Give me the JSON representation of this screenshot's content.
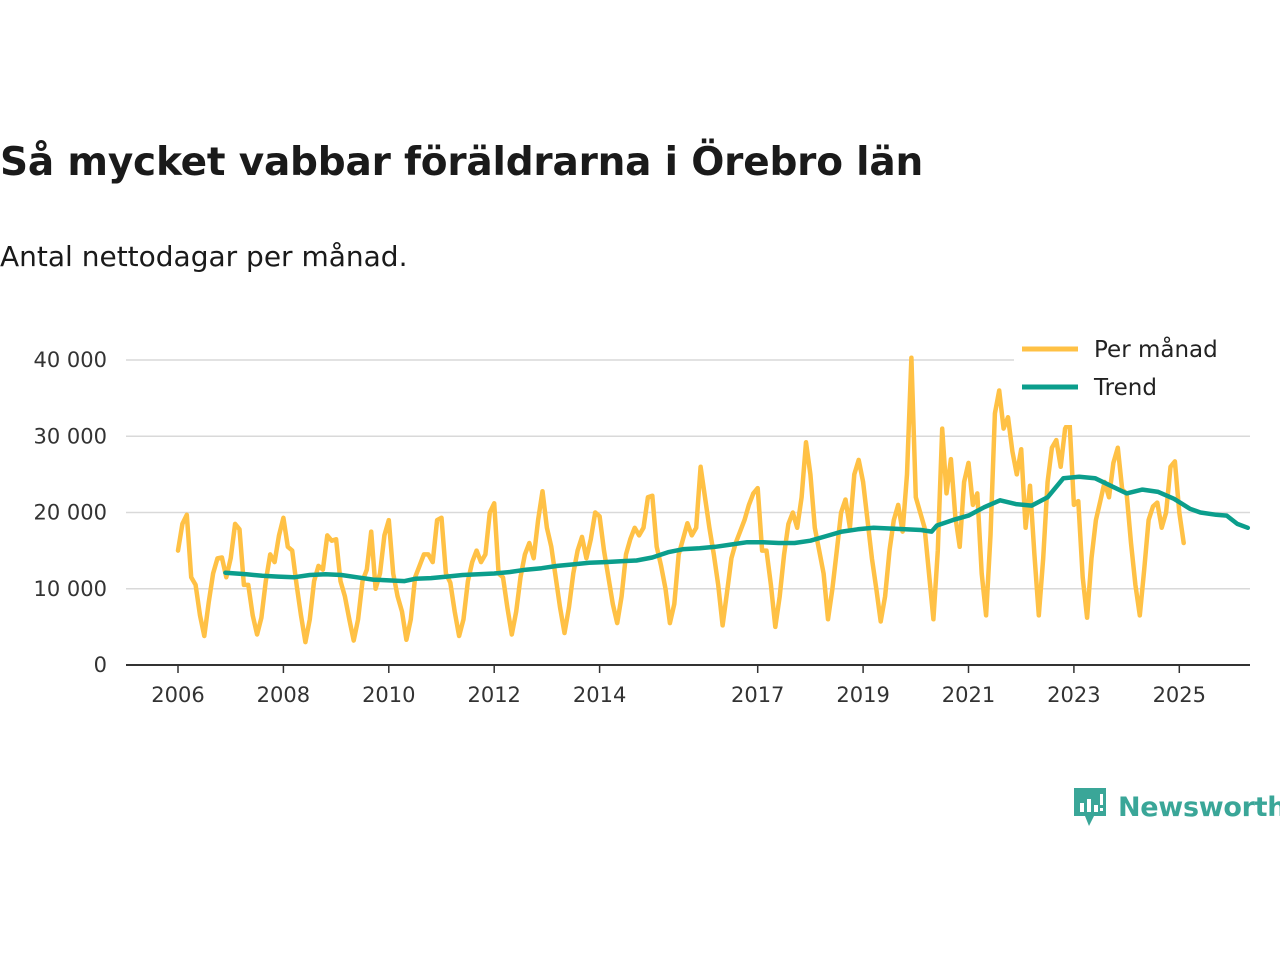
{
  "header": {
    "title": "Så mycket vabbar föräldrarna i Örebro län",
    "subtitle": "Antal nettodagar per månad."
  },
  "brand": {
    "name": "Newsworthy",
    "color": "#3aa698"
  },
  "chart_data": {
    "type": "line",
    "title": "Så mycket vabbar föräldrarna i Örebro län",
    "subtitle": "Antal nettodagar per månad.",
    "xlabel": "",
    "ylabel": "",
    "xlim": [
      2005.5,
      2026.3
    ],
    "ylim": [
      0,
      40000
    ],
    "y_ticks": [
      0,
      10000,
      20000,
      30000,
      40000
    ],
    "y_tick_labels": [
      "0",
      "10 000",
      "20 000",
      "30 000",
      "40 000"
    ],
    "x_ticks": [
      2006,
      2008,
      2010,
      2012,
      2014,
      2017,
      2019,
      2021,
      2023,
      2025
    ],
    "x_tick_labels": [
      "2006",
      "2008",
      "2010",
      "2012",
      "2014",
      "2017",
      "2019",
      "2021",
      "2023",
      "2025"
    ],
    "grid": true,
    "legend_position": "top-right",
    "series": [
      {
        "name": "Per månad",
        "color": "#ffc145",
        "start_year": 2006,
        "values": [
          15000,
          18500,
          19700,
          11500,
          10500,
          6500,
          3800,
          8200,
          12000,
          14000,
          14100,
          11500,
          14000,
          18500,
          17800,
          10500,
          10500,
          6500,
          4000,
          6200,
          11000,
          14500,
          13500,
          17000,
          19300,
          15500,
          15000,
          10500,
          6500,
          3000,
          6000,
          11000,
          13000,
          12500,
          17000,
          16300,
          16500,
          11000,
          9000,
          6000,
          3200,
          6000,
          11000,
          12500,
          17500,
          10000,
          12000,
          17000,
          19000,
          12000,
          9000,
          7000,
          3300,
          6000,
          11500,
          13000,
          14500,
          14500,
          13500,
          19000,
          19300,
          12000,
          10800,
          7000,
          3800,
          6000,
          11000,
          13500,
          15000,
          13500,
          14500,
          20000,
          21200,
          12000,
          11500,
          7500,
          4000,
          7000,
          11500,
          14500,
          16000,
          14000,
          19000,
          22800,
          18000,
          15500,
          11500,
          7500,
          4200,
          7500,
          12000,
          15000,
          16800,
          14000,
          16500,
          20000,
          19500,
          15000,
          11500,
          8000,
          5500,
          9000,
          14500,
          16500,
          18000,
          17000,
          18000,
          22000,
          22200,
          15500,
          13000,
          10000,
          5500,
          8000,
          14500,
          16500,
          18600,
          17000,
          18000,
          26000,
          22000,
          18000,
          14500,
          10500,
          5200,
          9500,
          14000,
          16000,
          17500,
          19000,
          21000,
          22500,
          23200,
          15000,
          15000,
          10500,
          5000,
          9000,
          14500,
          18500,
          20000,
          18000,
          22000,
          29200,
          25000,
          18000,
          15000,
          12000,
          6000,
          10000,
          15000,
          20000,
          21700,
          18000,
          25000,
          26900,
          24000,
          19000,
          14000,
          10000,
          5700,
          9000,
          15000,
          19000,
          21000,
          17500,
          25000,
          40300,
          22000,
          20000,
          18000,
          12000,
          6000,
          15000,
          31000,
          22500,
          27000,
          19500,
          15500,
          24000,
          26500,
          21000,
          22500,
          12000,
          6500,
          17000,
          33000,
          36000,
          31000,
          32500,
          28000,
          25000,
          28300,
          18000,
          23500,
          14500,
          6500,
          14000,
          24000,
          28500,
          29500,
          26000,
          31000,
          32000,
          21000,
          21500,
          11500,
          6200,
          14000,
          19000,
          21500,
          24000,
          22000,
          26500,
          28500,
          23000,
          22500,
          16000,
          10500,
          6500,
          12500,
          19000,
          20800,
          21300,
          18000,
          20000,
          26000,
          26700,
          20000,
          16000
        ]
      },
      {
        "name": "Trend",
        "color": "#0b9e8c",
        "start_year": 2006.9,
        "points": [
          [
            2006.9,
            12100
          ],
          [
            2007.3,
            11900
          ],
          [
            2007.6,
            11700
          ],
          [
            2007.9,
            11600
          ],
          [
            2008.2,
            11500
          ],
          [
            2008.5,
            11800
          ],
          [
            2008.8,
            11900
          ],
          [
            2009.1,
            11800
          ],
          [
            2009.4,
            11500
          ],
          [
            2009.7,
            11200
          ],
          [
            2010.0,
            11100
          ],
          [
            2010.3,
            11000
          ],
          [
            2010.5,
            11300
          ],
          [
            2010.8,
            11400
          ],
          [
            2011.1,
            11600
          ],
          [
            2011.4,
            11800
          ],
          [
            2011.7,
            11900
          ],
          [
            2012.0,
            12000
          ],
          [
            2012.3,
            12200
          ],
          [
            2012.6,
            12500
          ],
          [
            2012.9,
            12700
          ],
          [
            2013.2,
            13000
          ],
          [
            2013.5,
            13200
          ],
          [
            2013.8,
            13400
          ],
          [
            2014.1,
            13500
          ],
          [
            2014.4,
            13600
          ],
          [
            2014.7,
            13700
          ],
          [
            2015.0,
            14100
          ],
          [
            2015.3,
            14800
          ],
          [
            2015.6,
            15200
          ],
          [
            2015.9,
            15300
          ],
          [
            2016.2,
            15500
          ],
          [
            2016.5,
            15800
          ],
          [
            2016.8,
            16100
          ],
          [
            2017.1,
            16100
          ],
          [
            2017.4,
            16000
          ],
          [
            2017.7,
            16000
          ],
          [
            2018.0,
            16300
          ],
          [
            2018.3,
            16900
          ],
          [
            2018.6,
            17500
          ],
          [
            2018.9,
            17800
          ],
          [
            2019.2,
            18000
          ],
          [
            2019.5,
            17900
          ],
          [
            2019.8,
            17800
          ],
          [
            2020.1,
            17700
          ],
          [
            2020.3,
            17500
          ],
          [
            2020.4,
            18300
          ],
          [
            2020.7,
            19000
          ],
          [
            2021.0,
            19600
          ],
          [
            2021.3,
            20700
          ],
          [
            2021.6,
            21600
          ],
          [
            2021.9,
            21100
          ],
          [
            2022.2,
            20900
          ],
          [
            2022.5,
            22000
          ],
          [
            2022.8,
            24500
          ],
          [
            2023.1,
            24700
          ],
          [
            2023.4,
            24500
          ],
          [
            2023.7,
            23500
          ],
          [
            2024.0,
            22500
          ],
          [
            2024.3,
            23000
          ],
          [
            2024.6,
            22700
          ],
          [
            2024.9,
            21800
          ],
          [
            2025.2,
            20500
          ],
          [
            2025.4,
            20000
          ],
          [
            2025.7,
            19700
          ],
          [
            2025.9,
            19600
          ],
          [
            2026.1,
            18500
          ],
          [
            2026.3,
            18000
          ]
        ]
      }
    ]
  }
}
